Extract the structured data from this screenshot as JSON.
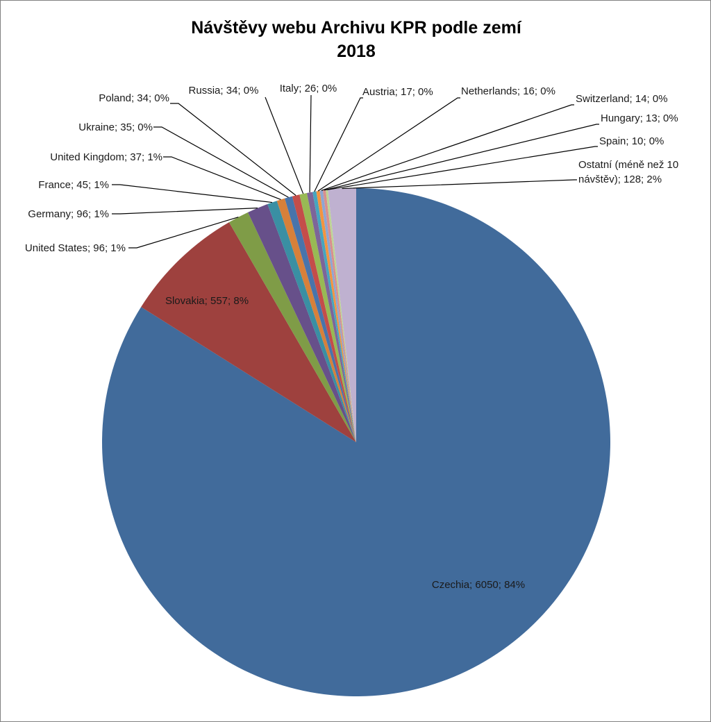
{
  "chart_data": {
    "type": "pie",
    "title": "Návštěvy webu Archivu KPR podle zemí",
    "subtitle": "2018",
    "slices": [
      {
        "label": "Czechia",
        "value": 6050,
        "percent": "84%",
        "color": "#416B9B"
      },
      {
        "label": "Slovakia",
        "value": 557,
        "percent": "8%",
        "color": "#9E413E"
      },
      {
        "label": "United States",
        "value": 96,
        "percent": "1%",
        "color": "#7F9C47"
      },
      {
        "label": "Germany",
        "value": 96,
        "percent": "1%",
        "color": "#67508A"
      },
      {
        "label": "France",
        "value": 45,
        "percent": "1%",
        "color": "#3A8FA3"
      },
      {
        "label": "United Kingdom",
        "value": 37,
        "percent": "1%",
        "color": "#D7803A"
      },
      {
        "label": "Ukraine",
        "value": 35,
        "percent": "0%",
        "color": "#4874AB"
      },
      {
        "label": "Poland",
        "value": 34,
        "percent": "0%",
        "color": "#C44D4A"
      },
      {
        "label": "Russia",
        "value": 34,
        "percent": "0%",
        "color": "#98B954"
      },
      {
        "label": "Italy",
        "value": 26,
        "percent": "0%",
        "color": "#7D6599"
      },
      {
        "label": "Austria",
        "value": 17,
        "percent": "0%",
        "color": "#46A5BF"
      },
      {
        "label": "Netherlands",
        "value": 16,
        "percent": "0%",
        "color": "#F39440"
      },
      {
        "label": "Switzerland",
        "value": 14,
        "percent": "0%",
        "color": "#8EA6D2"
      },
      {
        "label": "Hungary",
        "value": 13,
        "percent": "0%",
        "color": "#D98F8E"
      },
      {
        "label": "Spain",
        "value": 10,
        "percent": "0%",
        "color": "#BDD595"
      },
      {
        "label": "Ostatní (méně než 10 návštěv)",
        "label_lines": [
          "Ostatní (méně než 10",
          "návštěv); 128; 2%"
        ],
        "value": 128,
        "percent": "2%",
        "color": "#BFB1D0"
      }
    ],
    "start_angle": "12 o'clock",
    "direction": "clockwise",
    "legend": "none",
    "data_labels": "category; value; percentage"
  }
}
